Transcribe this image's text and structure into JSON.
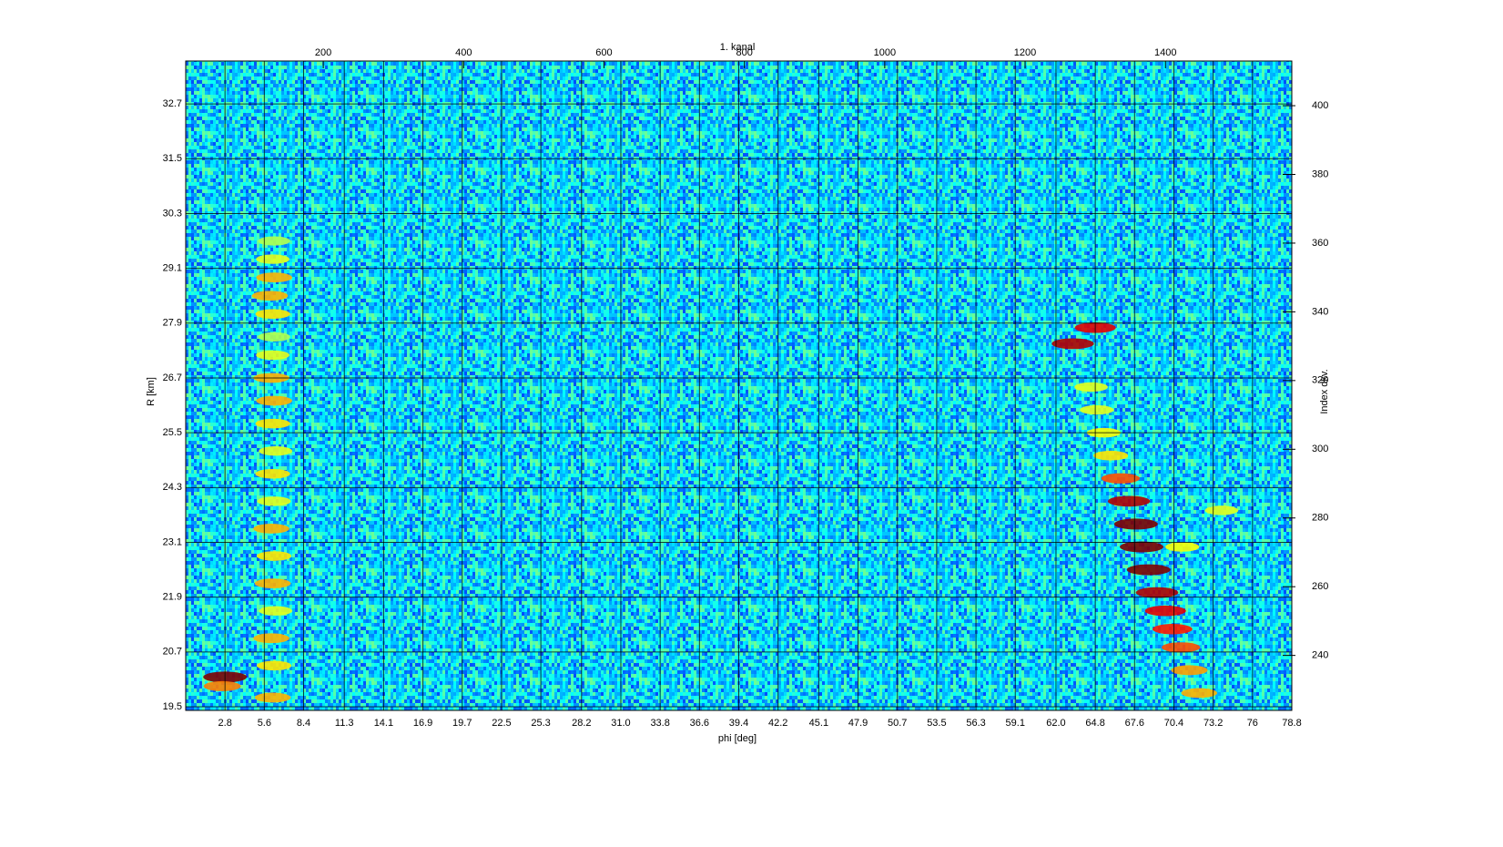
{
  "chart_data": {
    "type": "heatmap",
    "title": "1. kanal",
    "xlabel": "phi [deg]",
    "ylabel": "R [km]",
    "y2label": "Index dkv.",
    "xlim": [
      0,
      78.8
    ],
    "ylim": [
      19.42,
      33.64
    ],
    "x2lim": [
      4,
      1580
    ],
    "y2lim": [
      224,
      413
    ],
    "xticks": [
      2.8,
      5.6,
      8.4,
      11.3,
      14.1,
      16.9,
      19.7,
      22.5,
      25.3,
      28.2,
      {
        "value": 31,
        "label": "31.0"
      },
      33.8,
      36.6,
      39.4,
      42.2,
      45.1,
      47.9,
      50.7,
      53.5,
      56.3,
      59.1,
      {
        "value": 62,
        "label": "62.0"
      },
      64.8,
      67.6,
      70.4,
      73.2,
      76.0,
      78.8
    ],
    "yticks": [
      19.5,
      20.7,
      21.9,
      23.1,
      24.3,
      25.5,
      26.7,
      27.9,
      29.1,
      30.3,
      31.5,
      32.7
    ],
    "x2ticks": [
      200,
      400,
      600,
      800,
      1000,
      1200,
      1400
    ],
    "y2ticks": [
      240,
      260,
      280,
      300,
      320,
      340,
      360,
      380,
      400
    ],
    "grid": true,
    "colormap": "jet",
    "x": [
      2.8,
      2.6,
      6.2,
      6.3,
      6.1,
      6.4,
      6.2,
      6.3,
      6.1,
      6.3,
      6.2,
      6.4,
      6.2,
      6.3,
      6.1,
      6.2,
      6.3,
      6.2,
      6.0,
      6.3,
      6.2,
      6.3,
      63.2,
      64.8,
      64.5,
      64.9,
      65.4,
      65.9,
      66.6,
      67.2,
      67.7,
      68.1,
      68.6,
      69.2,
      69.8,
      70.3,
      70.9,
      71.5,
      72.2,
      73.8,
      71.0
    ],
    "y": [
      20.15,
      19.95,
      19.7,
      20.4,
      21.0,
      21.6,
      22.2,
      22.8,
      23.4,
      24.0,
      24.6,
      25.1,
      25.7,
      26.2,
      26.7,
      27.2,
      27.6,
      28.1,
      28.5,
      28.9,
      29.3,
      29.7,
      27.45,
      27.8,
      26.5,
      26.0,
      25.5,
      25.0,
      24.5,
      24.0,
      23.5,
      23.0,
      22.5,
      22.0,
      21.6,
      21.2,
      20.8,
      20.3,
      19.8,
      23.8,
      23.0
    ],
    "values": [
      1.0,
      0.75,
      0.7,
      0.65,
      0.7,
      0.6,
      0.7,
      0.65,
      0.7,
      0.6,
      0.65,
      0.6,
      0.65,
      0.7,
      0.7,
      0.6,
      0.55,
      0.65,
      0.7,
      0.7,
      0.6,
      0.55,
      0.95,
      0.9,
      0.6,
      0.6,
      0.62,
      0.65,
      0.8,
      0.95,
      1.0,
      1.0,
      1.0,
      0.95,
      0.9,
      0.85,
      0.8,
      0.72,
      0.7,
      0.6,
      0.62
    ]
  }
}
